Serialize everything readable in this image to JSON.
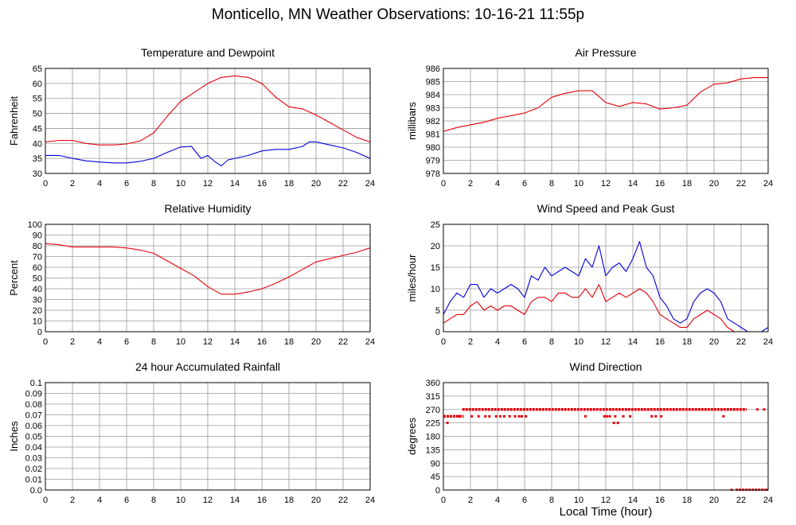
{
  "title": "Monticello, MN Weather Observations: 10-16-21 11:55p",
  "xaxis_title": "Local Time (hour)",
  "colors": {
    "red": "#e8000b",
    "blue": "#0000dd",
    "grid": "#9a9a9a"
  },
  "chart_data": [
    {
      "id": "temp",
      "type": "line",
      "title": "Temperature and Dewpoint",
      "ylabel": "Fahrenheit",
      "xlim": [
        0,
        24
      ],
      "ylim": [
        30,
        65
      ],
      "yticks": [
        30,
        35,
        40,
        45,
        50,
        55,
        60,
        65
      ],
      "xticks": [
        0,
        2,
        4,
        6,
        8,
        10,
        12,
        14,
        16,
        18,
        20,
        22,
        24
      ],
      "grid": true,
      "series": [
        {
          "color": "red",
          "x": [
            0,
            1,
            2,
            3,
            4,
            5,
            6,
            7,
            8,
            9,
            10,
            11,
            12,
            13,
            14,
            15,
            16,
            17,
            18,
            19,
            20,
            21,
            22,
            23,
            24
          ],
          "y": [
            40.5,
            41,
            41,
            40,
            39.5,
            39.5,
            39.8,
            40.8,
            43.5,
            49,
            54,
            57,
            60,
            62,
            62.5,
            62,
            60,
            55.5,
            52.2,
            51.5,
            49.5,
            47,
            44.5,
            42,
            40.5
          ]
        },
        {
          "color": "blue",
          "x": [
            0,
            1,
            2,
            3,
            4,
            5,
            6,
            7,
            8,
            9,
            10,
            10.8,
            11.5,
            12,
            12.5,
            13,
            13.5,
            14,
            15,
            16,
            17,
            18,
            19,
            19.5,
            20,
            21,
            22,
            23,
            24
          ],
          "y": [
            36,
            36,
            35,
            34.2,
            33.8,
            33.5,
            33.5,
            34,
            35,
            37,
            38.8,
            39,
            35,
            36,
            34,
            32.5,
            34.5,
            35,
            36,
            37.5,
            38,
            38,
            39,
            40.5,
            40.5,
            39.5,
            38.5,
            37,
            35
          ]
        }
      ]
    },
    {
      "id": "pressure",
      "type": "line",
      "title": "Air Pressure",
      "ylabel": "millibars",
      "xlim": [
        0,
        24
      ],
      "ylim": [
        978,
        986
      ],
      "yticks": [
        978,
        979,
        980,
        981,
        982,
        983,
        984,
        985,
        986
      ],
      "xticks": [
        0,
        2,
        4,
        6,
        8,
        10,
        12,
        14,
        16,
        18,
        20,
        22,
        24
      ],
      "grid": true,
      "series": [
        {
          "color": "red",
          "x": [
            0,
            1,
            2,
            3,
            4,
            5,
            6,
            7,
            8,
            9,
            10,
            11,
            12,
            13,
            14,
            15,
            16,
            17,
            18,
            19,
            20,
            21,
            22,
            23,
            24
          ],
          "y": [
            981.2,
            981.5,
            981.7,
            981.9,
            982.2,
            982.4,
            982.6,
            983,
            983.8,
            984.1,
            984.3,
            984.3,
            983.4,
            983.1,
            983.4,
            983.3,
            982.9,
            983,
            983.2,
            984.2,
            984.8,
            984.9,
            985.2,
            985.3,
            985.3
          ]
        }
      ]
    },
    {
      "id": "humidity",
      "type": "line",
      "title": "Relative Humidity",
      "ylabel": "Percent",
      "xlim": [
        0,
        24
      ],
      "ylim": [
        0,
        100
      ],
      "yticks": [
        0,
        10,
        20,
        30,
        40,
        50,
        60,
        70,
        80,
        90,
        100
      ],
      "xticks": [
        0,
        2,
        4,
        6,
        8,
        10,
        12,
        14,
        16,
        18,
        20,
        22,
        24
      ],
      "grid": true,
      "series": [
        {
          "color": "red",
          "x": [
            0,
            1,
            2,
            3,
            4,
            5,
            6,
            7,
            8,
            9,
            10,
            11,
            12,
            13,
            14,
            15,
            16,
            17,
            18,
            19,
            20,
            21,
            22,
            23,
            24
          ],
          "y": [
            82,
            81,
            79,
            79,
            79,
            79,
            78,
            76,
            73,
            66,
            59,
            52,
            42,
            35,
            35,
            37,
            40,
            45,
            51,
            58,
            65,
            68,
            71,
            74,
            78
          ]
        }
      ]
    },
    {
      "id": "wind",
      "type": "line",
      "title": "Wind Speed and Peak Gust",
      "ylabel": "miles/hour",
      "xlim": [
        0,
        24
      ],
      "ylim": [
        0,
        25
      ],
      "yticks": [
        0,
        5,
        10,
        15,
        20,
        25
      ],
      "xticks": [
        0,
        2,
        4,
        6,
        8,
        10,
        12,
        14,
        16,
        18,
        20,
        22,
        24
      ],
      "grid": true,
      "series": [
        {
          "color": "blue",
          "x": [
            0,
            0.5,
            1,
            1.5,
            2,
            2.5,
            3,
            3.5,
            4,
            4.5,
            5,
            5.5,
            6,
            6.5,
            7,
            7.5,
            8,
            8.5,
            9,
            9.5,
            10,
            10.5,
            11,
            11.5,
            12,
            12.5,
            13,
            13.5,
            14,
            14.5,
            15,
            15.5,
            16,
            16.5,
            17,
            17.5,
            18,
            18.5,
            19,
            19.5,
            20,
            20.5,
            21,
            21.5,
            22,
            22.5,
            23,
            23.5,
            24
          ],
          "y": [
            4,
            7,
            9,
            8,
            11,
            11,
            8,
            10,
            9,
            10,
            11,
            10,
            8,
            13,
            12,
            15,
            13,
            14,
            15,
            14,
            13,
            17,
            15,
            20,
            13,
            15,
            16,
            14,
            17,
            21,
            15,
            13,
            8,
            6,
            3,
            2,
            3,
            7,
            9,
            10,
            9,
            7,
            3,
            2,
            1,
            0,
            0,
            0,
            1
          ]
        },
        {
          "color": "red",
          "x": [
            0,
            0.5,
            1,
            1.5,
            2,
            2.5,
            3,
            3.5,
            4,
            4.5,
            5,
            5.5,
            6,
            6.5,
            7,
            7.5,
            8,
            8.5,
            9,
            9.5,
            10,
            10.5,
            11,
            11.5,
            12,
            12.5,
            13,
            13.5,
            14,
            14.5,
            15,
            15.5,
            16,
            16.5,
            17,
            17.5,
            18,
            18.5,
            19,
            19.5,
            20,
            20.5,
            21,
            21.5,
            22,
            22.5,
            23,
            23.5,
            24
          ],
          "y": [
            2,
            3,
            4,
            4,
            6,
            7,
            5,
            6,
            5,
            6,
            6,
            5,
            4,
            7,
            8,
            8,
            7,
            9,
            9,
            8,
            8,
            10,
            8,
            11,
            7,
            8,
            9,
            8,
            9,
            10,
            9,
            7,
            4,
            3,
            2,
            1,
            1,
            3,
            4,
            5,
            4,
            3,
            1,
            0,
            0,
            0,
            0,
            0,
            0
          ]
        }
      ]
    },
    {
      "id": "rainfall",
      "type": "line",
      "title": "24 hour Accumulated Rainfall",
      "ylabel": "Inches",
      "xlim": [
        0,
        24
      ],
      "ylim": [
        0,
        0.1
      ],
      "yticks": [
        "0.0",
        "0.01",
        "0.02",
        "0.03",
        "0.04",
        "0.05",
        "0.06",
        "0.07",
        "0.08",
        "0.09",
        "0.1"
      ],
      "xticks": [
        0,
        2,
        4,
        6,
        8,
        10,
        12,
        14,
        16,
        18,
        20,
        22,
        24
      ],
      "grid": true,
      "series": [
        {
          "color": "red",
          "x": [
            0,
            24
          ],
          "y": [
            0,
            0
          ]
        }
      ]
    },
    {
      "id": "direction",
      "type": "scatter",
      "title": "Wind Direction",
      "ylabel": "degrees",
      "xlim": [
        0,
        24
      ],
      "ylim": [
        0,
        360
      ],
      "yticks": [
        0,
        45,
        90,
        135,
        180,
        225,
        270,
        315,
        360
      ],
      "xticks": [
        0,
        2,
        4,
        6,
        8,
        10,
        12,
        14,
        16,
        18,
        20,
        22,
        24
      ],
      "grid": true,
      "series": [
        {
          "color": "red",
          "segments": [
            {
              "x0": 0,
              "x1": 1.5,
              "y": 247
            },
            {
              "x0": 1.4,
              "x1": 22.4,
              "y": 270
            },
            {
              "x0": 21.6,
              "x1": 23.8,
              "y": 0
            }
          ],
          "x": [
            0.3,
            0.8,
            1.2,
            2.1,
            2.6,
            3.1,
            3.4,
            3.9,
            4.2,
            4.5,
            4.9,
            5.3,
            5.6,
            5.8,
            6.1,
            10.5,
            11.9,
            12.1,
            12.3,
            12.6,
            12.7,
            12.9,
            13.3,
            13.8,
            15.4,
            15.7,
            16.1,
            20.7,
            21.3,
            23.2,
            23.7,
            23.9
          ],
          "y": [
            225,
            247,
            247,
            247,
            247,
            247,
            247,
            247,
            247,
            247,
            247,
            247,
            247,
            247,
            247,
            247,
            247,
            247,
            247,
            225,
            247,
            225,
            247,
            247,
            247,
            247,
            247,
            247,
            0,
            270,
            270,
            0
          ]
        }
      ]
    }
  ]
}
